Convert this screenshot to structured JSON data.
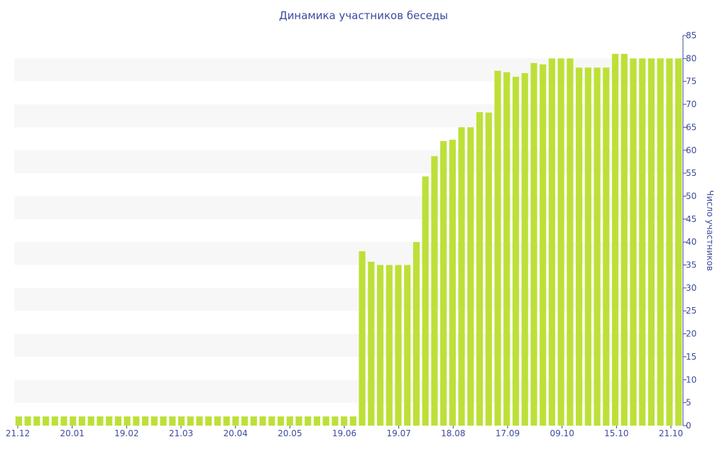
{
  "chart_data": {
    "type": "bar",
    "title": "Динамика участников беседы",
    "ylabel": "Число участников",
    "xlabel": "",
    "ylim": [
      0,
      85
    ],
    "y_ticks": [
      0,
      5,
      10,
      15,
      20,
      25,
      30,
      35,
      40,
      45,
      50,
      55,
      60,
      65,
      70,
      75,
      80,
      85
    ],
    "y_axis_position": "right",
    "grid": "alternating horizontal bands",
    "legend": "none",
    "x_tick_labels": [
      "21.12",
      "20.01",
      "19.02",
      "21.03",
      "20.04",
      "20.05",
      "19.06",
      "19.07",
      "18.08",
      "17.09",
      "09.10",
      "15.10",
      "21.10"
    ],
    "values": [
      2,
      2,
      2,
      2,
      2,
      2,
      2,
      2,
      2,
      2,
      2,
      2,
      2,
      2,
      2,
      2,
      2,
      2,
      2,
      2,
      2,
      2,
      2,
      2,
      2,
      2,
      2,
      2,
      2,
      2,
      2,
      2,
      2,
      2,
      2,
      2,
      2,
      2,
      38,
      35.7,
      35,
      35,
      35,
      35,
      40,
      54.3,
      58.7,
      62,
      62.3,
      65,
      65,
      68.3,
      68.2,
      77.3,
      77,
      76,
      76.8,
      79,
      78.7,
      80,
      80,
      80,
      78,
      78,
      78,
      78,
      81,
      81,
      80,
      80,
      80,
      80,
      80,
      80
    ],
    "bar_color": "#bde038",
    "band_color": "#f7f7f7",
    "text_color": "#3c4a9e"
  }
}
